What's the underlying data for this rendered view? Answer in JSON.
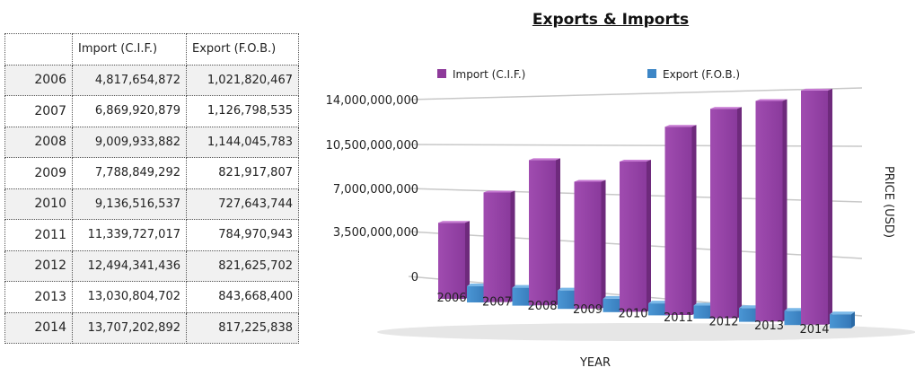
{
  "table": {
    "headers": [
      "",
      "Import (C.I.F.)",
      "Export (F.O.B.)"
    ],
    "rows": [
      [
        "2006",
        "4,817,654,872",
        "1,021,820,467"
      ],
      [
        "2007",
        "6,869,920,879",
        "1,126,798,535"
      ],
      [
        "2008",
        "9,009,933,882",
        "1,144,045,783"
      ],
      [
        "2009",
        "7,788,849,292",
        "821,917,807"
      ],
      [
        "2010",
        "9,136,516,537",
        "727,643,744"
      ],
      [
        "2011",
        "11,339,727,017",
        "784,970,943"
      ],
      [
        "2012",
        "12,494,341,436",
        "821,625,702"
      ],
      [
        "2013",
        "13,030,804,702",
        "843,668,400"
      ],
      [
        "2014",
        "13,707,202,892",
        "817,225,838"
      ]
    ]
  },
  "chart_data": {
    "type": "bar",
    "title": "Exports & Imports",
    "xlabel": "YEAR",
    "ylabel": "PRICE (USD)",
    "categories": [
      "2006",
      "2007",
      "2008",
      "2009",
      "2010",
      "2011",
      "2012",
      "2013",
      "2014"
    ],
    "series": [
      {
        "name": "Import (C.I.F.)",
        "color": "#8e3a9a",
        "values": [
          4817654872,
          6869920879,
          9009933882,
          7788849292,
          9136516537,
          11339727017,
          12494341436,
          13030804702,
          13707202892
        ]
      },
      {
        "name": "Export (F.O.B.)",
        "color": "#3d86c6",
        "values": [
          1021820467,
          1126798535,
          1144045783,
          821917807,
          727643744,
          784970943,
          821625702,
          843668400,
          817225838
        ]
      }
    ],
    "yticks": [
      "0",
      "3,500,000,000",
      "7,000,000,000",
      "10,500,000,000",
      "14,000,000,000"
    ],
    "ylim": [
      0,
      14000000000
    ],
    "legend": "top",
    "grid": true
  }
}
